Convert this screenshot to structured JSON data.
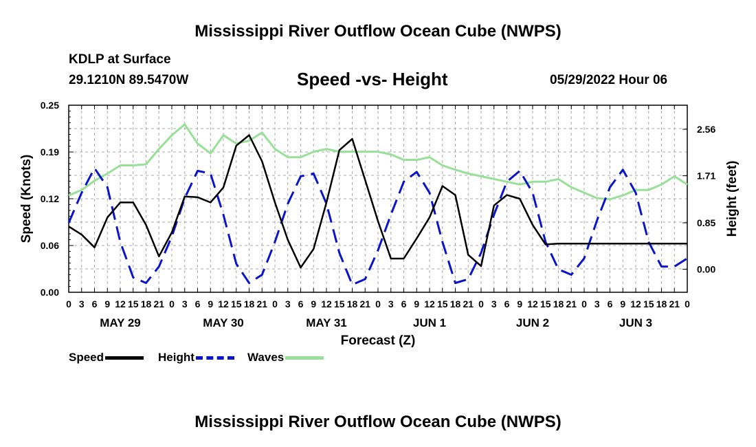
{
  "page": {
    "title_top": "Mississippi River Outflow Ocean Cube (NWPS)",
    "title_bottom": "Mississippi River Outflow Ocean Cube (NWPS)",
    "station": "KDLP at Surface",
    "coords": "29.1210N  89.5470W",
    "subtitle": "Speed -vs- Height",
    "datetime": "05/29/2022 Hour 06"
  },
  "legend": {
    "speed": "Speed",
    "height": "Height",
    "waves": "Waves"
  },
  "colors": {
    "speed": "#000000",
    "height": "#0a14c8",
    "waves": "#98e098",
    "grid": "#a8a8a8"
  },
  "chart_data": {
    "type": "line",
    "title": "Speed -vs- Height",
    "xlabel": "Forecast (Z)",
    "ylabel_left": "Speed (Knots)",
    "ylabel_right": "Height (feet)",
    "x_range": [
      0,
      144
    ],
    "y_left_range": [
      0,
      0.25
    ],
    "y_left_ticks": [
      "0.00",
      "0.06",
      "0.12",
      "0.19",
      "0.25"
    ],
    "y_right_range": [
      -0.42,
      3.0
    ],
    "y_right_ticks": [
      {
        "value": 0.0,
        "label": "0.00"
      },
      {
        "value": 0.85,
        "label": "0.85"
      },
      {
        "value": 1.71,
        "label": "1.71"
      },
      {
        "value": 2.56,
        "label": "2.56"
      }
    ],
    "x_tick_labels": [
      "0",
      "3",
      "6",
      "9",
      "12",
      "15",
      "18",
      "21",
      "0",
      "3",
      "6",
      "9",
      "12",
      "15",
      "18",
      "21",
      "0",
      "3",
      "6",
      "9",
      "12",
      "15",
      "18",
      "21",
      "0",
      "3",
      "6",
      "9",
      "12",
      "15",
      "18",
      "21",
      "0",
      "3",
      "6",
      "9",
      "12",
      "15",
      "18",
      "21",
      "0",
      "3",
      "6",
      "9",
      "12",
      "15",
      "18",
      "21",
      "0"
    ],
    "day_labels": [
      "MAY 29",
      "MAY 30",
      "MAY 31",
      "JUN 1",
      "JUN 2",
      "JUN 3"
    ],
    "grid": true,
    "series": [
      {
        "name": "Speed",
        "axis": "left",
        "x": [
          0,
          3,
          6,
          9,
          12,
          15,
          18,
          21,
          24,
          27,
          30,
          33,
          36,
          39,
          42,
          45,
          48,
          51,
          54,
          57,
          60,
          63,
          66,
          69,
          72,
          75,
          78,
          81,
          84,
          87,
          90,
          93,
          96,
          99,
          102,
          105,
          108,
          111,
          114,
          117,
          120,
          123,
          126,
          129,
          132,
          135,
          138,
          141,
          144
        ],
        "values": [
          0.088,
          0.077,
          0.06,
          0.1,
          0.12,
          0.12,
          0.09,
          0.048,
          0.08,
          0.128,
          0.127,
          0.12,
          0.14,
          0.196,
          0.21,
          0.175,
          0.12,
          0.07,
          0.033,
          0.058,
          0.12,
          0.19,
          0.205,
          0.15,
          0.095,
          0.045,
          0.045,
          0.072,
          0.1,
          0.142,
          0.13,
          0.05,
          0.035,
          0.116,
          0.13,
          0.125,
          0.09,
          0.064,
          0.065,
          0.065,
          0.065,
          0.065,
          0.065,
          0.065,
          0.065,
          0.065,
          0.065,
          0.065,
          0.065
        ]
      },
      {
        "name": "Height",
        "axis": "right",
        "x": [
          0,
          3,
          6,
          9,
          12,
          15,
          18,
          21,
          24,
          27,
          30,
          33,
          36,
          39,
          42,
          45,
          48,
          51,
          54,
          57,
          60,
          63,
          66,
          69,
          72,
          75,
          78,
          81,
          84,
          87,
          90,
          93,
          96,
          99,
          102,
          105,
          108,
          111,
          114,
          117,
          120,
          123,
          126,
          129,
          132,
          135,
          138,
          141,
          144
        ],
        "values": [
          0.85,
          1.4,
          1.85,
          1.5,
          0.5,
          -0.15,
          -0.25,
          0.05,
          0.6,
          1.3,
          1.8,
          1.75,
          1.0,
          0.1,
          -0.25,
          -0.1,
          0.5,
          1.2,
          1.7,
          1.75,
          1.2,
          0.3,
          -0.28,
          -0.18,
          0.35,
          1.0,
          1.6,
          1.78,
          1.4,
          0.5,
          -0.25,
          -0.18,
          0.3,
          1.0,
          1.6,
          1.8,
          1.4,
          0.5,
          0.0,
          -0.1,
          0.2,
          0.9,
          1.5,
          1.82,
          1.4,
          0.5,
          0.05,
          0.05,
          0.2
        ]
      },
      {
        "name": "Waves",
        "axis": "right",
        "x": [
          0,
          3,
          6,
          9,
          12,
          15,
          18,
          21,
          24,
          27,
          30,
          33,
          36,
          39,
          42,
          45,
          48,
          51,
          54,
          57,
          60,
          63,
          66,
          69,
          72,
          75,
          78,
          81,
          84,
          87,
          90,
          93,
          96,
          99,
          102,
          105,
          108,
          111,
          114,
          117,
          120,
          123,
          126,
          129,
          132,
          135,
          138,
          141,
          144
        ],
        "values": [
          1.35,
          1.45,
          1.62,
          1.75,
          1.9,
          1.9,
          1.92,
          2.2,
          2.45,
          2.65,
          2.3,
          2.12,
          2.45,
          2.3,
          2.35,
          2.5,
          2.2,
          2.05,
          2.05,
          2.15,
          2.2,
          2.15,
          2.15,
          2.15,
          2.15,
          2.1,
          2.0,
          2.0,
          2.05,
          1.9,
          1.82,
          1.75,
          1.7,
          1.65,
          1.6,
          1.55,
          1.6,
          1.6,
          1.65,
          1.5,
          1.4,
          1.3,
          1.28,
          1.35,
          1.45,
          1.45,
          1.55,
          1.7,
          1.55
        ]
      }
    ]
  }
}
